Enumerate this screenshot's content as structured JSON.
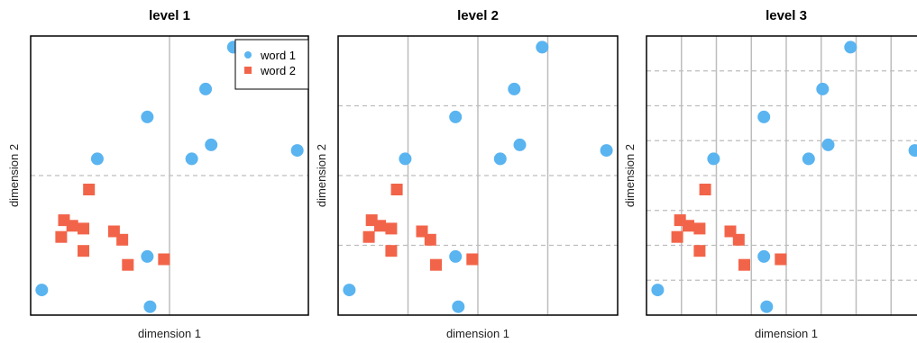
{
  "chart_data": {
    "type": "scatter",
    "colors": {
      "word 1": "#5ab4f0",
      "word 2": "#f26449",
      "vgrid": "#bdbdbd",
      "hgrid": "#bdbdbd"
    },
    "legend": {
      "placement": "top-right",
      "entries": [
        "word 1",
        "word 2"
      ]
    },
    "panels": [
      {
        "title": "level 1",
        "xlabel": "dimension 1",
        "ylabel": "dimension 2",
        "vgrid": [
          0.5
        ],
        "hgrid": [
          0.5
        ],
        "hgrid_style": "dashed",
        "show_legend": true
      },
      {
        "title": "level 2",
        "xlabel": "dimension 1",
        "ylabel": "dimension 2",
        "vgrid": [
          0.25,
          0.5,
          0.75
        ],
        "hgrid": [
          0.25,
          0.5,
          0.75
        ],
        "hgrid_style": "dashed",
        "show_legend": false
      },
      {
        "title": "level 3",
        "xlabel": "dimension 1",
        "ylabel": "dimension 2",
        "vgrid": [
          0.125,
          0.25,
          0.375,
          0.5,
          0.625,
          0.75,
          0.875
        ],
        "hgrid": [
          0.125,
          0.25,
          0.375,
          0.5,
          0.625,
          0.75,
          0.875
        ],
        "hgrid_style": "dashed",
        "show_legend": false
      }
    ],
    "series": [
      {
        "name": "word 1",
        "marker": "circle",
        "points": [
          [
            0.73,
            0.96
          ],
          [
            0.63,
            0.81
          ],
          [
            0.42,
            0.71
          ],
          [
            0.65,
            0.61
          ],
          [
            0.58,
            0.56
          ],
          [
            0.96,
            0.59
          ],
          [
            0.24,
            0.56
          ],
          [
            0.42,
            0.21
          ],
          [
            0.04,
            0.09
          ],
          [
            0.43,
            0.03
          ]
        ]
      },
      {
        "name": "word 2",
        "marker": "square",
        "points": [
          [
            0.21,
            0.45
          ],
          [
            0.12,
            0.34
          ],
          [
            0.15,
            0.32
          ],
          [
            0.19,
            0.31
          ],
          [
            0.11,
            0.28
          ],
          [
            0.3,
            0.3
          ],
          [
            0.33,
            0.27
          ],
          [
            0.19,
            0.23
          ],
          [
            0.35,
            0.18
          ],
          [
            0.48,
            0.2
          ]
        ]
      }
    ]
  }
}
